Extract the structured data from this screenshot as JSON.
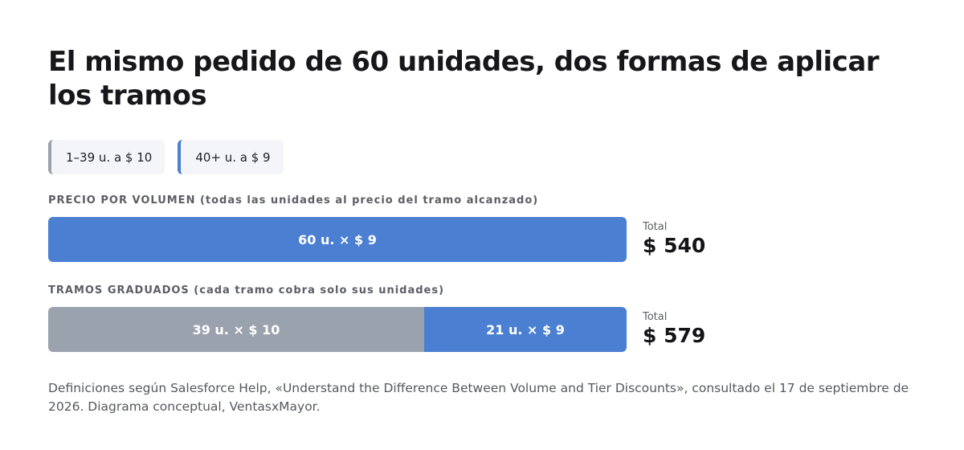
{
  "title": "El mismo pedido de 60 unidades, dos formas de aplicar los tramos",
  "legend": [
    {
      "label": "1–39 u. a $ 10",
      "color": "#9aa2ad"
    },
    {
      "label": "40+ u. a $ 9",
      "color": "#4a7fd1"
    }
  ],
  "volume": {
    "heading": "PRECIO POR VOLUMEN (todas las unidades al precio del tramo alcanzado)",
    "segments": [
      {
        "label": "60 u. × $ 9",
        "units": 60,
        "color": "#4a7fd1"
      }
    ],
    "total_label": "Total",
    "total_value": "$ 540"
  },
  "graduated": {
    "heading": "TRAMOS GRADUADOS (cada tramo cobra solo sus unidades)",
    "segments": [
      {
        "label": "39 u. × $ 10",
        "units": 39,
        "color": "#9aa2ad"
      },
      {
        "label": "21 u. × $ 9",
        "units": 21,
        "color": "#4a7fd1"
      }
    ],
    "total_label": "Total",
    "total_value": "$ 579"
  },
  "source": "Definiciones según Salesforce Help, «Understand the Difference Between Volume and Tier Discounts», consultado el 17 de septiembre de 2026. Diagrama conceptual, VentasxMayor."
}
